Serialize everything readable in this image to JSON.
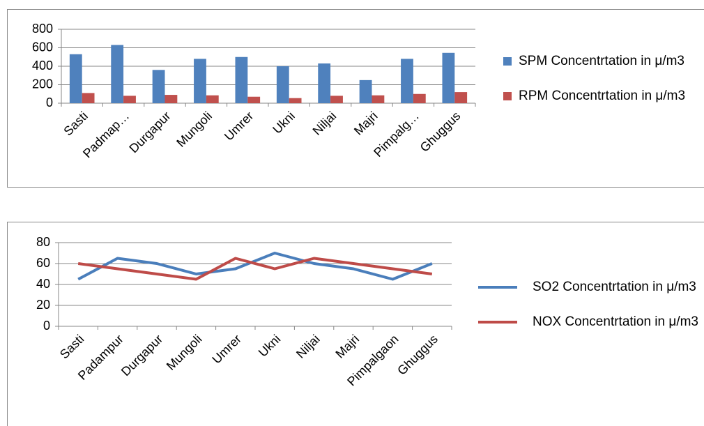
{
  "chart_data": [
    {
      "type": "bar",
      "categories": [
        "Sasti",
        "Padmap…",
        "Durgapur",
        "Mungoli",
        "Umrer",
        "Ukni",
        "Niljai",
        "Majri",
        "Pimpalg…",
        "Ghuggus"
      ],
      "series": [
        {
          "name": "SPM Concentrtation in μ/m3",
          "color": "#4f81bd",
          "values": [
            530,
            630,
            360,
            480,
            500,
            400,
            430,
            250,
            480,
            545
          ]
        },
        {
          "name": "RPM  Concentrtation in μ/m3",
          "color": "#c0504d",
          "values": [
            110,
            80,
            90,
            85,
            70,
            55,
            80,
            85,
            100,
            120
          ]
        }
      ],
      "ylim": [
        0,
        800
      ],
      "yticks": [
        0,
        200,
        400,
        600,
        800
      ],
      "grid": true,
      "legend": "right"
    },
    {
      "type": "line",
      "categories": [
        "Sasti",
        "Padampur",
        "Durgapur",
        "Mungoli",
        "Umrer",
        "Ukni",
        "Niljai",
        "Majri",
        "Pimpalgaon",
        "Ghuggus"
      ],
      "series": [
        {
          "name": "SO2  Concentrtation in μ/m3",
          "color": "#4a7ebb",
          "values": [
            45,
            65,
            60,
            50,
            55,
            70,
            60,
            55,
            45,
            60
          ]
        },
        {
          "name": "NOX  Concentrtation in μ/m3",
          "color": "#be4b48",
          "values": [
            60,
            55,
            50,
            45,
            65,
            55,
            65,
            60,
            55,
            50
          ]
        }
      ],
      "ylim": [
        0,
        80
      ],
      "yticks": [
        0,
        20,
        40,
        60,
        80
      ],
      "grid": true,
      "legend": "right"
    }
  ]
}
